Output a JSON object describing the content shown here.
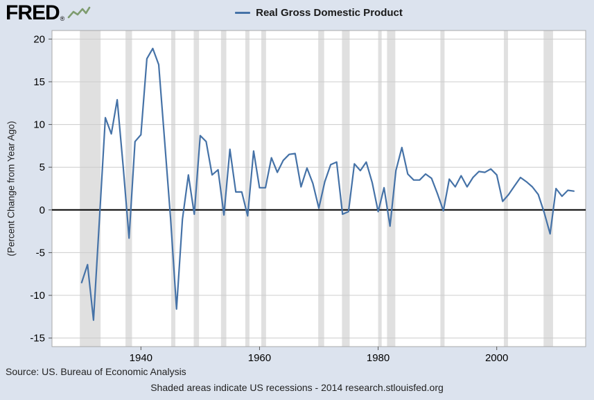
{
  "brand": {
    "logo": "FRED",
    "registered": "®"
  },
  "legend": {
    "series_label": "Real Gross Domestic Product"
  },
  "footer": {
    "source": "Source: US. Bureau of Economic Analysis",
    "note": "Shaded areas indicate US recessions - 2014 research.stlouisfed.org"
  },
  "colors": {
    "page_background": "#dce3ee",
    "plot_background": "#ffffff",
    "line": "#4572a7",
    "recession_band": "#e0e0e0",
    "gridline": "#cccccc",
    "plot_border": "#a9a9a9",
    "zero_line": "#000000",
    "logo_squiggle": "#7e9c6f"
  },
  "chart_data": {
    "type": "line",
    "title": "Real Gross Domestic Product",
    "xlabel": "",
    "ylabel": "(Percent Change from Year Ago)",
    "x_range": [
      1925,
      2015
    ],
    "y_range": [
      -16,
      21
    ],
    "y_ticks": [
      20,
      15,
      10,
      5,
      0,
      -5,
      -10,
      -15
    ],
    "x_ticks": [
      1940,
      1960,
      1980,
      2000
    ],
    "grid": "horizontal",
    "zero_line": true,
    "legend_position": "top",
    "line_color": "#4572a7",
    "recession_color": "#e0e0e0",
    "recessions": [
      [
        1929.7,
        1933.2
      ],
      [
        1937.4,
        1938.5
      ],
      [
        1945.1,
        1945.8
      ],
      [
        1948.9,
        1949.8
      ],
      [
        1953.5,
        1954.4
      ],
      [
        1957.6,
        1958.3
      ],
      [
        1960.3,
        1961.1
      ],
      [
        1969.9,
        1970.9
      ],
      [
        1973.9,
        1975.2
      ],
      [
        1980.0,
        1980.6
      ],
      [
        1981.5,
        1982.9
      ],
      [
        1990.5,
        1991.2
      ],
      [
        2001.2,
        2001.9
      ],
      [
        2007.9,
        2009.5
      ]
    ],
    "series": [
      {
        "name": "Real Gross Domestic Product",
        "units": "Percent Change from Year Ago",
        "x": [
          1930,
          1931,
          1932,
          1933,
          1934,
          1935,
          1936,
          1937,
          1938,
          1939,
          1940,
          1941,
          1942,
          1943,
          1944,
          1945,
          1946,
          1947,
          1948,
          1949,
          1950,
          1951,
          1952,
          1953,
          1954,
          1955,
          1956,
          1957,
          1958,
          1959,
          1960,
          1961,
          1962,
          1963,
          1964,
          1965,
          1966,
          1967,
          1968,
          1969,
          1970,
          1971,
          1972,
          1973,
          1974,
          1975,
          1976,
          1977,
          1978,
          1979,
          1980,
          1981,
          1982,
          1983,
          1984,
          1985,
          1986,
          1987,
          1988,
          1989,
          1990,
          1991,
          1992,
          1993,
          1994,
          1995,
          1996,
          1997,
          1998,
          1999,
          2000,
          2001,
          2002,
          2003,
          2004,
          2005,
          2006,
          2007,
          2008,
          2009,
          2010,
          2011,
          2012,
          2013
        ],
        "values": [
          -8.5,
          -6.4,
          -12.9,
          -1.2,
          10.8,
          8.9,
          12.9,
          5.1,
          -3.3,
          8.0,
          8.8,
          17.7,
          18.9,
          17.0,
          8.0,
          -1.0,
          -11.6,
          -1.1,
          4.1,
          -0.5,
          8.7,
          8.0,
          4.1,
          4.7,
          -0.6,
          7.1,
          2.1,
          2.1,
          -0.7,
          6.9,
          2.6,
          2.6,
          6.1,
          4.4,
          5.8,
          6.5,
          6.6,
          2.7,
          4.9,
          3.1,
          0.2,
          3.3,
          5.3,
          5.6,
          -0.5,
          -0.2,
          5.4,
          4.6,
          5.6,
          3.2,
          -0.2,
          2.6,
          -1.9,
          4.6,
          7.3,
          4.2,
          3.5,
          3.5,
          4.2,
          3.7,
          1.9,
          -0.1,
          3.6,
          2.7,
          4.0,
          2.7,
          3.8,
          4.5,
          4.4,
          4.8,
          4.1,
          1.0,
          1.8,
          2.8,
          3.8,
          3.3,
          2.7,
          1.8,
          -0.3,
          -2.8,
          2.5,
          1.6,
          2.3,
          2.2
        ]
      }
    ]
  }
}
